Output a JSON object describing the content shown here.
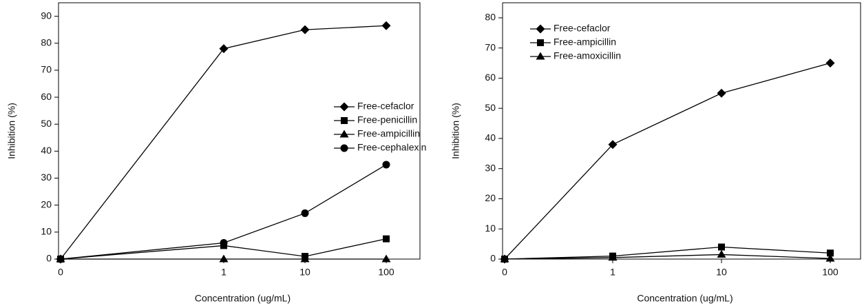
{
  "chart_data": [
    {
      "type": "line",
      "x_label": "Concentration (ug/mL)",
      "y_label": "Inhibition (%)",
      "categories": [
        "0",
        "1",
        "10",
        "100"
      ],
      "ylim": [
        0,
        95
      ],
      "yticks": [
        0,
        10,
        20,
        30,
        40,
        50,
        60,
        70,
        80,
        90
      ],
      "grid": false,
      "legend": "right",
      "series": [
        {
          "name": "Free-cefaclor",
          "color": "#000000",
          "marker": "diamond",
          "values": [
            0,
            78,
            85,
            86.5
          ]
        },
        {
          "name": "Free-penicillin",
          "color": "#000000",
          "marker": "square",
          "values": [
            0,
            5,
            1,
            7.5
          ]
        },
        {
          "name": "Free-ampicillin",
          "color": "#000000",
          "marker": "triangle",
          "values": [
            0,
            0,
            0,
            0
          ]
        },
        {
          "name": "Free-cephalexin",
          "color": "#000000",
          "marker": "circle",
          "values": [
            0,
            6,
            17,
            35
          ]
        }
      ]
    },
    {
      "type": "line",
      "x_label": "Concentration (ug/mL)",
      "y_label": "Inhibition (%)",
      "categories": [
        "0",
        "1",
        "10",
        "100"
      ],
      "ylim": [
        0,
        85
      ],
      "yticks": [
        0,
        10,
        20,
        30,
        40,
        50,
        60,
        70,
        80
      ],
      "grid": false,
      "legend": "upper left",
      "series": [
        {
          "name": "Free-cefaclor",
          "color": "#000000",
          "marker": "diamond",
          "values": [
            0,
            38,
            55,
            65
          ]
        },
        {
          "name": "Free-ampicillin",
          "color": "#000000",
          "marker": "square",
          "values": [
            0,
            1,
            4,
            2
          ]
        },
        {
          "name": "Free-amoxicillin",
          "color": "#000000",
          "marker": "triangle",
          "values": [
            0,
            0.5,
            1.5,
            0.2
          ]
        }
      ]
    }
  ]
}
